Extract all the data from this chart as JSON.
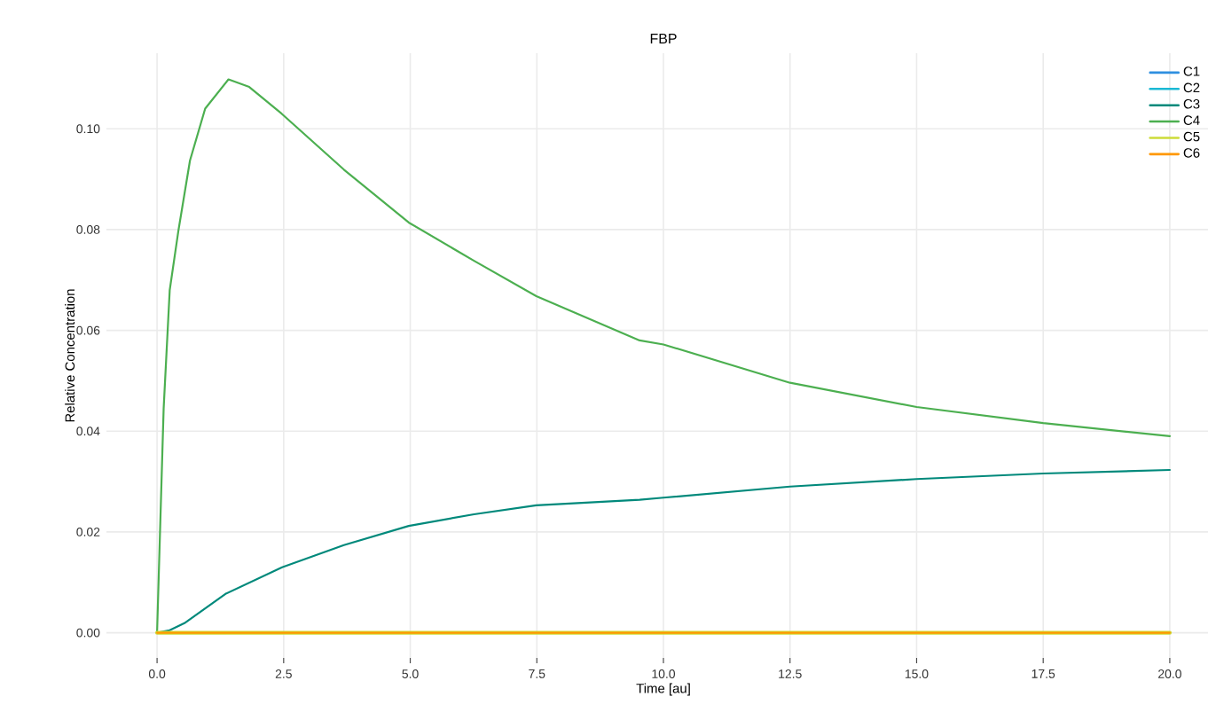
{
  "chart_data": {
    "type": "line",
    "title": "FBP",
    "xlabel": "Time [au]",
    "ylabel": "Relative Concentration",
    "xlim": [
      -1,
      21
    ],
    "ylim": [
      -0.005,
      0.115
    ],
    "xticks": [
      {
        "value": 0,
        "label": "0.0"
      },
      {
        "value": 2.5,
        "label": "2.5"
      },
      {
        "value": 5,
        "label": "5.0"
      },
      {
        "value": 7.5,
        "label": "7.5"
      },
      {
        "value": 10,
        "label": "10.0"
      },
      {
        "value": 12.5,
        "label": "12.5"
      },
      {
        "value": 15,
        "label": "15.0"
      },
      {
        "value": 17.5,
        "label": "17.5"
      },
      {
        "value": 20,
        "label": "20.0"
      }
    ],
    "yticks": [
      {
        "value": 0,
        "label": "0.00"
      },
      {
        "value": 0.02,
        "label": "0.02"
      },
      {
        "value": 0.04,
        "label": "0.04"
      },
      {
        "value": 0.06,
        "label": "0.06"
      },
      {
        "value": 0.08,
        "label": "0.08"
      },
      {
        "value": 0.1,
        "label": "0.10"
      }
    ],
    "grid": true,
    "legend": "top right",
    "marker": "none",
    "line_style": "solid",
    "series": [
      {
        "name": "C1",
        "color": "#2e8fe0"
      },
      {
        "name": "C2",
        "color": "#1bb8d4"
      },
      {
        "name": "C3",
        "color": "#00897b",
        "x": [
          0,
          0.25,
          0.54,
          1.35,
          2.47,
          3.69,
          4.97,
          6.26,
          7.49,
          9.53,
          10,
          12.5,
          15,
          17.5,
          20
        ],
        "values": [
          0,
          0.0005,
          0.0019,
          0.0077,
          0.013,
          0.0174,
          0.0212,
          0.0235,
          0.0253,
          0.0264,
          0.0268,
          0.029,
          0.0305,
          0.0316,
          0.0323
        ]
      },
      {
        "name": "C4",
        "color": "#4caf50",
        "x": [
          0,
          0.13,
          0.25,
          0.42,
          0.65,
          0.95,
          1.41,
          1.82,
          2.46,
          3.69,
          4.97,
          6.26,
          7.49,
          9.53,
          10,
          12.5,
          15,
          17.5,
          20
        ],
        "values": [
          0,
          0.0445,
          0.068,
          0.0797,
          0.0937,
          0.104,
          0.1098,
          0.1083,
          0.103,
          0.0919,
          0.0814,
          0.0738,
          0.0668,
          0.058,
          0.0572,
          0.0496,
          0.0448,
          0.0416,
          0.039
        ]
      },
      {
        "name": "C5",
        "color": "#cddc39",
        "x": [
          0,
          20
        ],
        "values": [
          0,
          0
        ]
      },
      {
        "name": "C6",
        "color": "#ff9800",
        "x": [
          0,
          20
        ],
        "values": [
          0,
          0
        ]
      }
    ]
  }
}
